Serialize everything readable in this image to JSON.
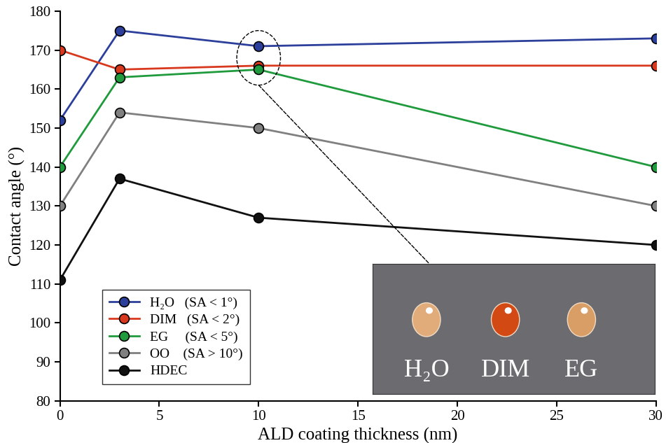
{
  "chart_data": {
    "type": "line",
    "x_label": "ALD coating thickness (nm)",
    "y_label": "Contact angle (°)",
    "x": [
      0,
      3,
      10,
      30
    ],
    "series": [
      {
        "name": "H₂O   (SA < 1°)",
        "color": "#2c3f9b",
        "marker": "circle",
        "values": [
          152,
          175,
          171,
          173
        ]
      },
      {
        "name": "DIM   (SA < 2°)",
        "color": "#d8391e",
        "marker": "circle",
        "values": [
          170,
          165,
          166,
          166
        ]
      },
      {
        "name": "EG     (SA < 5°)",
        "color": "#1f9a3d",
        "marker": "circle",
        "values": [
          140,
          163,
          165,
          140
        ]
      },
      {
        "name": "OO    (SA > 10°)",
        "color": "#808080",
        "marker": "circle",
        "values": [
          130,
          154,
          150,
          130
        ]
      },
      {
        "name": "HDEC",
        "color": "#111111",
        "marker": "circle",
        "values": [
          111,
          137,
          127,
          120
        ]
      }
    ],
    "xlim": [
      0,
      30
    ],
    "xticks": [
      0,
      5,
      10,
      15,
      20,
      25,
      30
    ],
    "ylim": [
      80,
      180
    ],
    "yticks": [
      80,
      90,
      100,
      110,
      120,
      130,
      140,
      150,
      160,
      170,
      180
    ],
    "legend": "lower left",
    "annotations": [
      "H₂O",
      "DIM",
      "EG"
    ]
  }
}
